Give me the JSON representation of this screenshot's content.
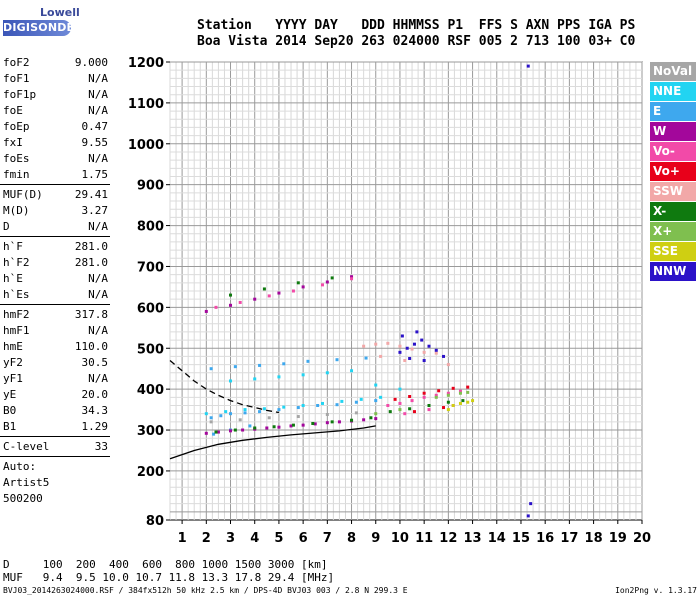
{
  "logo": {
    "top": "Lowell",
    "brand": "DIGISONDE"
  },
  "header": {
    "line1": "Station   YYYY DAY   DDD HHMMSS P1  FFS S AXN PPS IGA PS",
    "line2": "Boa Vista 2014 Sep20 263 024000 RSF 005 2 713 100 03+ C0"
  },
  "params_groups": [
    [
      {
        "k": "foF2",
        "v": "9.000"
      },
      {
        "k": "foF1",
        "v": "N/A"
      },
      {
        "k": "foF1p",
        "v": "N/A"
      },
      {
        "k": "foE",
        "v": "N/A"
      },
      {
        "k": "foEp",
        "v": "0.47"
      },
      {
        "k": "fxI",
        "v": "9.55"
      },
      {
        "k": "foEs",
        "v": "N/A"
      },
      {
        "k": "fmin",
        "v": "1.75"
      }
    ],
    [
      {
        "k": "MUF(D)",
        "v": "29.41"
      },
      {
        "k": "M(D)",
        "v": "3.27"
      },
      {
        "k": "D",
        "v": "N/A"
      }
    ],
    [
      {
        "k": "h`F",
        "v": "281.0"
      },
      {
        "k": "h`F2",
        "v": "281.0"
      },
      {
        "k": "h`E",
        "v": "N/A"
      },
      {
        "k": "h`Es",
        "v": "N/A"
      }
    ],
    [
      {
        "k": "hmF2",
        "v": "317.8"
      },
      {
        "k": "hmF1",
        "v": "N/A"
      },
      {
        "k": "hmE",
        "v": "110.0"
      },
      {
        "k": "yF2",
        "v": "30.5"
      },
      {
        "k": "yF1",
        "v": "N/A"
      },
      {
        "k": "yE",
        "v": "20.0"
      },
      {
        "k": "B0",
        "v": "34.3"
      },
      {
        "k": "B1",
        "v": "1.29"
      }
    ],
    [
      {
        "k": "C-level",
        "v": "33"
      }
    ]
  ],
  "auto_lines": [
    "Auto:",
    "Artist5",
    "500200"
  ],
  "legend": [
    {
      "label": "NoVal",
      "color": "#a6a6a6"
    },
    {
      "label": "NNE",
      "color": "#22d4f2"
    },
    {
      "label": "E",
      "color": "#3ea8ee"
    },
    {
      "label": "W",
      "color": "#a3079b"
    },
    {
      "label": "Vo-",
      "color": "#f24aa8"
    },
    {
      "label": "Vo+",
      "color": "#e8001a"
    },
    {
      "label": "SSW",
      "color": "#f2a8a8"
    },
    {
      "label": "X-",
      "color": "#0f7a0f"
    },
    {
      "label": "X+",
      "color": "#7fbf4f"
    },
    {
      "label": "SSE",
      "color": "#cfcf12"
    },
    {
      "label": "NNW",
      "color": "#2b12c8"
    }
  ],
  "table": {
    "d_row": "D     100  200  400  600  800 1000 1500 3000 [km]",
    "muf_row": "MUF   9.4  9.5 10.0 10.7 11.8 13.3 17.8 29.4 [MHz]"
  },
  "footer": {
    "left": "BVJ03_2014263024000.RSF / 384fx512h 50 kHz 2.5 km / DPS-4D BVJ03 003 / 2.8 N 299.3 E",
    "right": "Ion2Png v. 1.3.17"
  },
  "chart_data": {
    "type": "scatter",
    "title": "",
    "xlabel": "",
    "ylabel": "",
    "xlim": [
      0.5,
      20
    ],
    "ylim": [
      80,
      1200
    ],
    "x_ticks": [
      1,
      2,
      3,
      4,
      5,
      6,
      7,
      8,
      9,
      10,
      11,
      12,
      13,
      14,
      15,
      16,
      17,
      18,
      19,
      20
    ],
    "y_ticks": [
      80,
      200,
      300,
      400,
      500,
      600,
      700,
      800,
      900,
      1000,
      1100,
      1200
    ],
    "grid": true,
    "series": [
      {
        "name": "E",
        "color": "#3ea8ee",
        "points": [
          [
            2.2,
            330
          ],
          [
            2.6,
            335
          ],
          [
            3.0,
            340
          ],
          [
            3.6,
            342
          ],
          [
            4.2,
            345
          ],
          [
            5.0,
            350
          ],
          [
            5.8,
            355
          ],
          [
            6.6,
            360
          ],
          [
            7.4,
            362
          ],
          [
            8.2,
            368
          ],
          [
            9.0,
            372
          ],
          [
            2.2,
            450
          ],
          [
            3.2,
            455
          ],
          [
            4.2,
            458
          ],
          [
            5.2,
            462
          ],
          [
            6.2,
            468
          ],
          [
            7.4,
            472
          ],
          [
            8.6,
            476
          ],
          [
            2.3,
            290
          ],
          [
            3.0,
            300
          ],
          [
            3.8,
            310
          ]
        ]
      },
      {
        "name": "NNE",
        "color": "#22d4f2",
        "points": [
          [
            2.0,
            340
          ],
          [
            2.8,
            345
          ],
          [
            3.6,
            350
          ],
          [
            4.4,
            352
          ],
          [
            5.2,
            356
          ],
          [
            6.0,
            360
          ],
          [
            6.8,
            365
          ],
          [
            7.6,
            370
          ],
          [
            8.4,
            375
          ],
          [
            9.2,
            380
          ],
          [
            3.0,
            420
          ],
          [
            4.0,
            425
          ],
          [
            5.0,
            430
          ],
          [
            6.0,
            435
          ],
          [
            7.0,
            440
          ],
          [
            8.0,
            445
          ],
          [
            9.0,
            410
          ],
          [
            10,
            400
          ]
        ]
      },
      {
        "name": "W",
        "color": "#a3079b",
        "points": [
          [
            2.0,
            292
          ],
          [
            2.5,
            295
          ],
          [
            3.0,
            298
          ],
          [
            3.5,
            300
          ],
          [
            4.0,
            302
          ],
          [
            4.5,
            305
          ],
          [
            5.0,
            307
          ],
          [
            5.5,
            310
          ],
          [
            6.0,
            312
          ],
          [
            6.5,
            315
          ],
          [
            7.0,
            318
          ],
          [
            7.5,
            320
          ],
          [
            8.0,
            322
          ],
          [
            8.5,
            325
          ],
          [
            9.0,
            328
          ],
          [
            2.0,
            590
          ],
          [
            3.0,
            605
          ],
          [
            4.0,
            620
          ],
          [
            5.0,
            635
          ],
          [
            6.0,
            650
          ],
          [
            7.0,
            662
          ],
          [
            8.0,
            675
          ]
        ]
      },
      {
        "name": "Vo-",
        "color": "#f24aa8",
        "points": [
          [
            9.5,
            360
          ],
          [
            10,
            365
          ],
          [
            10.5,
            372
          ],
          [
            11,
            380
          ],
          [
            11.5,
            385
          ],
          [
            12,
            390
          ],
          [
            12.5,
            395
          ],
          [
            10.2,
            340
          ],
          [
            11.2,
            350
          ],
          [
            12.2,
            360
          ],
          [
            2.4,
            600
          ],
          [
            3.4,
            612
          ],
          [
            4.6,
            628
          ],
          [
            5.6,
            640
          ],
          [
            6.8,
            655
          ],
          [
            8.0,
            670
          ]
        ]
      },
      {
        "name": "Vo+",
        "color": "#e8001a",
        "points": [
          [
            9.8,
            375
          ],
          [
            10.4,
            382
          ],
          [
            11.0,
            390
          ],
          [
            11.6,
            396
          ],
          [
            12.2,
            402
          ],
          [
            12.8,
            405
          ],
          [
            10.6,
            345
          ],
          [
            11.8,
            355
          ]
        ]
      },
      {
        "name": "SSW",
        "color": "#f2a8a8",
        "points": [
          [
            8.5,
            505
          ],
          [
            9.0,
            510
          ],
          [
            9.5,
            512
          ],
          [
            10,
            505
          ],
          [
            10.5,
            498
          ],
          [
            11,
            490
          ],
          [
            11.5,
            488
          ],
          [
            9.2,
            480
          ],
          [
            10.2,
            470
          ],
          [
            12.0,
            460
          ]
        ]
      },
      {
        "name": "X-",
        "color": "#0f7a0f",
        "points": [
          [
            2.4,
            295
          ],
          [
            3.2,
            300
          ],
          [
            4.0,
            305
          ],
          [
            4.8,
            308
          ],
          [
            5.6,
            312
          ],
          [
            6.4,
            316
          ],
          [
            7.2,
            320
          ],
          [
            8.0,
            324
          ],
          [
            8.8,
            330
          ],
          [
            9.6,
            345
          ],
          [
            10.4,
            352
          ],
          [
            11.2,
            360
          ],
          [
            12.0,
            368
          ],
          [
            12.6,
            372
          ],
          [
            3.0,
            630
          ],
          [
            4.4,
            645
          ],
          [
            5.8,
            660
          ],
          [
            7.2,
            672
          ]
        ]
      },
      {
        "name": "X+",
        "color": "#7fbf4f",
        "points": [
          [
            11.5,
            380
          ],
          [
            12.0,
            385
          ],
          [
            12.5,
            390
          ],
          [
            12.8,
            392
          ],
          [
            9.0,
            340
          ],
          [
            10.0,
            350
          ]
        ]
      },
      {
        "name": "SSE",
        "color": "#cfcf12",
        "points": [
          [
            12.2,
            360
          ],
          [
            12.5,
            365
          ],
          [
            12.8,
            368
          ],
          [
            13.0,
            372
          ],
          [
            12.0,
            350
          ]
        ]
      },
      {
        "name": "NNW",
        "color": "#2b12c8",
        "points": [
          [
            10.0,
            490
          ],
          [
            10.3,
            500
          ],
          [
            10.6,
            510
          ],
          [
            10.9,
            520
          ],
          [
            11.2,
            505
          ],
          [
            11.5,
            495
          ],
          [
            10.1,
            530
          ],
          [
            10.7,
            540
          ],
          [
            11.0,
            470
          ],
          [
            11.8,
            480
          ],
          [
            10.4,
            475
          ],
          [
            15.3,
            1190
          ],
          [
            15.4,
            120
          ],
          [
            15.3,
            90
          ]
        ]
      },
      {
        "name": "NoVal",
        "color": "#a6a6a6",
        "points": [
          [
            2.2,
            320
          ],
          [
            3.4,
            325
          ],
          [
            4.6,
            330
          ],
          [
            5.8,
            333
          ],
          [
            7.0,
            338
          ],
          [
            8.2,
            342
          ]
        ]
      }
    ],
    "curves": [
      {
        "name": "",
        "color": "#000000",
        "dash": false,
        "points": [
          [
            0.5,
            230
          ],
          [
            1.5,
            250
          ],
          [
            2.5,
            265
          ],
          [
            3.5,
            275
          ],
          [
            4.5,
            282
          ],
          [
            5.5,
            288
          ],
          [
            6.5,
            293
          ],
          [
            7.5,
            298
          ],
          [
            8.5,
            305
          ],
          [
            9.0,
            310
          ]
        ]
      },
      {
        "name": "",
        "color": "#000000",
        "dash": true,
        "points": [
          [
            0.5,
            470
          ],
          [
            1.0,
            445
          ],
          [
            1.5,
            420
          ],
          [
            2.0,
            400
          ],
          [
            2.5,
            385
          ],
          [
            3.0,
            372
          ],
          [
            3.5,
            362
          ],
          [
            4.0,
            355
          ],
          [
            4.5,
            348
          ],
          [
            5.0,
            343
          ]
        ]
      }
    ]
  }
}
